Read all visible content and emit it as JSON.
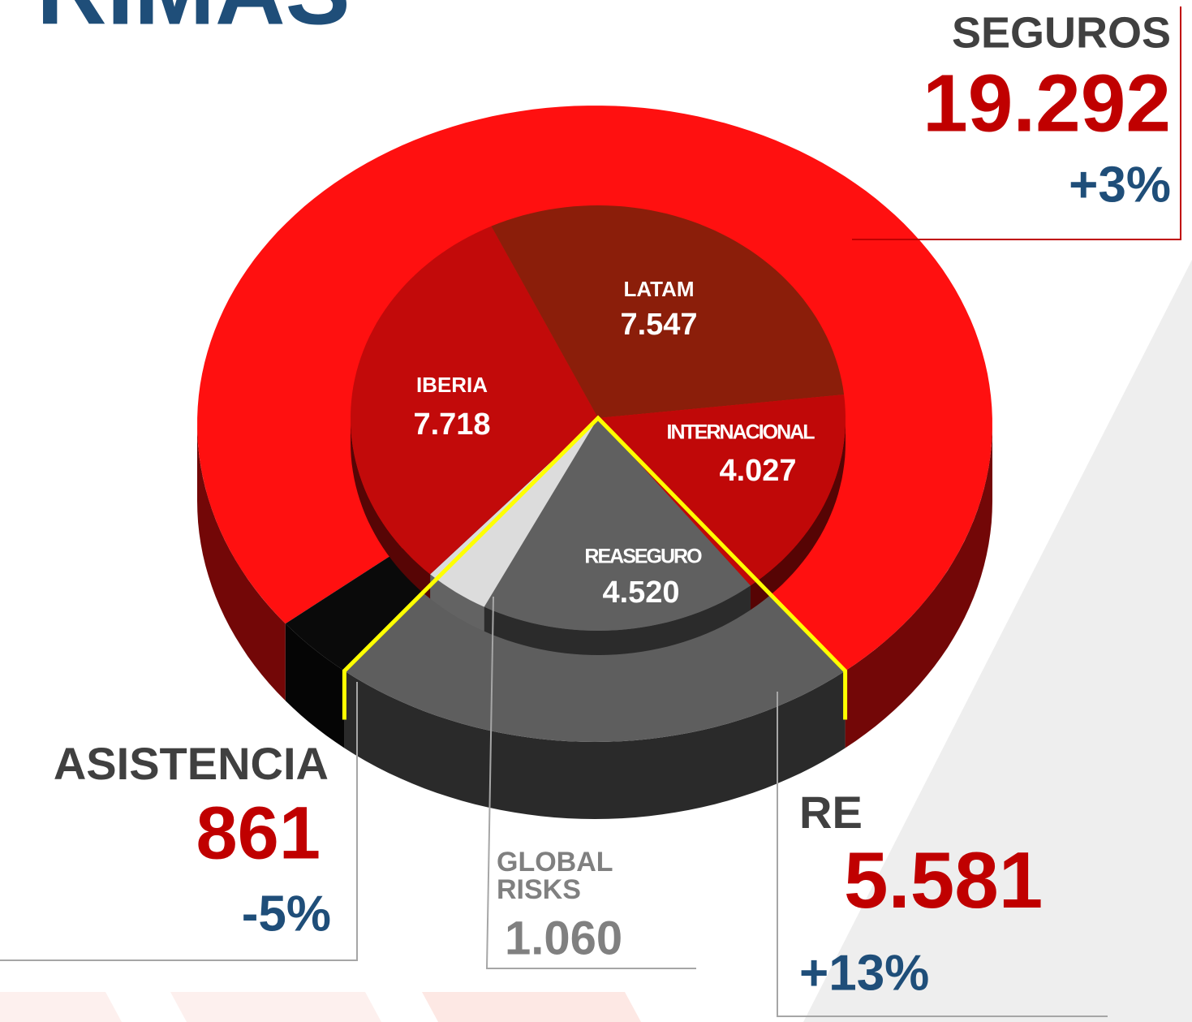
{
  "chart_data": {
    "type": "donut3d",
    "title": "RIMAS",
    "outer": {
      "categories": [
        "SEGUROS",
        "RE",
        "ASISTENCIA"
      ],
      "values": [
        19292,
        5581,
        861
      ],
      "value_labels": [
        "19.292",
        "5.581",
        "861"
      ],
      "changes": [
        "+3%",
        "+13%",
        "-5%"
      ],
      "colors": [
        "#ff1010",
        "#5e5e5e",
        "#0a0a0a"
      ]
    },
    "inner": {
      "categories": [
        "REASEGURO",
        "GLOBAL RISKS",
        "IBERIA",
        "LATAM",
        "INTERNACIONAL"
      ],
      "values": [
        4520,
        1060,
        7718,
        7547,
        4027
      ],
      "value_labels": [
        "4.520",
        "1.060",
        "7.718",
        "7.547",
        "4.027"
      ],
      "colors": [
        "#606060",
        "#dcdcdc",
        "#c20a0a",
        "#8b1e0a",
        "#c00808"
      ]
    }
  }
}
